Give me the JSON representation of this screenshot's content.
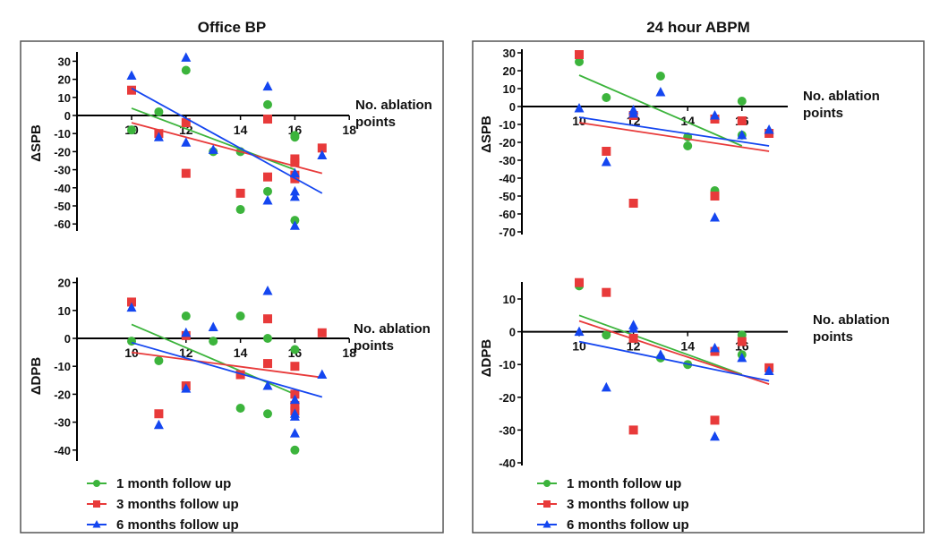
{
  "colors": {
    "1 month follow up": "#3cb43c",
    "3 months follow up": "#e83a3a",
    "6 months follow up": "#1446f0"
  },
  "legend": [
    "1 month follow up",
    "3 months follow up",
    "6 months follow up"
  ],
  "chart_data": [
    {
      "type": "scatter",
      "group_title": "Office BP",
      "ylabel": "ΔSPB",
      "xlabel": "No. ablation points",
      "xticks": [
        10,
        12,
        14,
        16,
        18
      ],
      "yticks": [
        30,
        20,
        10,
        0,
        -10,
        -20,
        -30,
        -40,
        -50,
        -60
      ],
      "ylim": [
        -63,
        35
      ],
      "xlim": [
        7,
        18
      ],
      "series": [
        {
          "name": "1 month follow up",
          "marker": "circle",
          "points": [
            [
              10,
              -8
            ],
            [
              11,
              2
            ],
            [
              12,
              25
            ],
            [
              13,
              -20
            ],
            [
              14,
              -20
            ],
            [
              14,
              -52
            ],
            [
              15,
              6
            ],
            [
              15,
              -42
            ],
            [
              16,
              -12
            ],
            [
              16,
              -11
            ],
            [
              16,
              -58
            ]
          ],
          "trend": [
            [
              10,
              4
            ],
            [
              16,
              -30
            ]
          ]
        },
        {
          "name": "3 months follow up",
          "marker": "square",
          "points": [
            [
              10,
              14
            ],
            [
              11,
              -10
            ],
            [
              12,
              -4
            ],
            [
              12,
              -32
            ],
            [
              14,
              -43
            ],
            [
              15,
              -2
            ],
            [
              15,
              -34
            ],
            [
              16,
              -24
            ],
            [
              16,
              -26
            ],
            [
              16,
              -33
            ],
            [
              16,
              -35
            ],
            [
              17,
              -18
            ]
          ],
          "trend": [
            [
              10,
              -4
            ],
            [
              17,
              -32
            ]
          ]
        },
        {
          "name": "6 months follow up",
          "marker": "triangle",
          "points": [
            [
              10,
              22
            ],
            [
              11,
              -12
            ],
            [
              12,
              32
            ],
            [
              12,
              -15
            ],
            [
              13,
              -19
            ],
            [
              15,
              16
            ],
            [
              15,
              -47
            ],
            [
              16,
              -32
            ],
            [
              16,
              -42
            ],
            [
              16,
              -45
            ],
            [
              16,
              -61
            ],
            [
              17,
              -22
            ]
          ],
          "trend": [
            [
              10,
              15
            ],
            [
              17,
              -43
            ]
          ]
        }
      ]
    },
    {
      "type": "scatter",
      "group_title": "24 hour ABPM",
      "ylabel": "ΔSPB",
      "xlabel": "No. ablation points",
      "xticks": [
        10,
        12,
        14,
        16
      ],
      "yticks": [
        30,
        20,
        10,
        0,
        -10,
        -20,
        -30,
        -40,
        -50,
        -60,
        -70
      ],
      "ylim": [
        -72,
        32
      ],
      "xlim": [
        8,
        18
      ],
      "series": [
        {
          "name": "1 month follow up",
          "marker": "circle",
          "points": [
            [
              10,
              25
            ],
            [
              11,
              5
            ],
            [
              13,
              17
            ],
            [
              14,
              -17
            ],
            [
              14,
              -22
            ],
            [
              15,
              -47
            ],
            [
              16,
              3
            ],
            [
              16,
              -16
            ]
          ],
          "trend": [
            [
              10,
              17.5
            ],
            [
              16,
              -22
            ]
          ]
        },
        {
          "name": "3 months follow up",
          "marker": "square",
          "points": [
            [
              10,
              29
            ],
            [
              11,
              -25
            ],
            [
              12,
              -5
            ],
            [
              12,
              -54
            ],
            [
              15,
              -7
            ],
            [
              15,
              -50
            ],
            [
              16,
              -8
            ],
            [
              17,
              -15
            ]
          ],
          "trend": [
            [
              10,
              -9
            ],
            [
              17,
              -25
            ]
          ]
        },
        {
          "name": "6 months follow up",
          "marker": "triangle",
          "points": [
            [
              10,
              -1
            ],
            [
              11,
              -31
            ],
            [
              12,
              -2
            ],
            [
              12,
              -4
            ],
            [
              13,
              8
            ],
            [
              15,
              -5
            ],
            [
              15,
              -62
            ],
            [
              16,
              -16
            ],
            [
              17,
              -13
            ]
          ],
          "trend": [
            [
              10,
              -6
            ],
            [
              17,
              -22
            ]
          ]
        }
      ]
    },
    {
      "type": "scatter",
      "group_title": "Office BP",
      "ylabel": "ΔDPB",
      "xlabel": "No. ablation points",
      "xticks": [
        10,
        12,
        14,
        16,
        18
      ],
      "yticks": [
        20,
        10,
        0,
        -10,
        -20,
        -30,
        -40
      ],
      "ylim": [
        -43,
        22
      ],
      "xlim": [
        7,
        18
      ],
      "series": [
        {
          "name": "1 month follow up",
          "marker": "circle",
          "points": [
            [
              10,
              -1
            ],
            [
              11,
              -8
            ],
            [
              12,
              8
            ],
            [
              13,
              -1
            ],
            [
              14,
              8
            ],
            [
              14,
              -25
            ],
            [
              15,
              0
            ],
            [
              15,
              -27
            ],
            [
              16,
              -4
            ],
            [
              16,
              -40
            ]
          ],
          "trend": [
            [
              10,
              5
            ],
            [
              16,
              -20
            ]
          ]
        },
        {
          "name": "3 months follow up",
          "marker": "square",
          "points": [
            [
              10,
              13
            ],
            [
              11,
              -27
            ],
            [
              12,
              1
            ],
            [
              12,
              -17
            ],
            [
              14,
              -13
            ],
            [
              15,
              7
            ],
            [
              15,
              -9
            ],
            [
              16,
              -10
            ],
            [
              16,
              -20
            ],
            [
              16,
              -24
            ],
            [
              16,
              -26
            ],
            [
              17,
              2
            ]
          ],
          "trend": [
            [
              10,
              -5
            ],
            [
              17,
              -14
            ]
          ]
        },
        {
          "name": "6 months follow up",
          "marker": "triangle",
          "points": [
            [
              10,
              11
            ],
            [
              11,
              -31
            ],
            [
              12,
              2
            ],
            [
              12,
              -18
            ],
            [
              13,
              4
            ],
            [
              15,
              17
            ],
            [
              15,
              -17
            ],
            [
              16,
              -22
            ],
            [
              16,
              -27
            ],
            [
              16,
              -28
            ],
            [
              16,
              -34
            ],
            [
              17,
              -13
            ]
          ],
          "trend": [
            [
              10,
              -1.5
            ],
            [
              17,
              -21
            ]
          ]
        }
      ]
    },
    {
      "type": "scatter",
      "group_title": "24 hour ABPM",
      "ylabel": "ΔDPB",
      "xlabel": "No. ablation points",
      "xticks": [
        10,
        12,
        14,
        16
      ],
      "yticks": [
        10,
        0,
        -10,
        -20,
        -30,
        -40
      ],
      "ylim": [
        -41,
        15
      ],
      "xlim": [
        8,
        18
      ],
      "series": [
        {
          "name": "1 month follow up",
          "marker": "circle",
          "points": [
            [
              10,
              14
            ],
            [
              11,
              -1
            ],
            [
              13,
              -8
            ],
            [
              14,
              -10
            ],
            [
              16,
              -1
            ],
            [
              16,
              -7
            ]
          ],
          "trend": [
            [
              10,
              5
            ],
            [
              16,
              -13
            ]
          ]
        },
        {
          "name": "3 months follow up",
          "marker": "square",
          "points": [
            [
              10,
              15
            ],
            [
              11,
              12
            ],
            [
              12,
              -2
            ],
            [
              12,
              -30
            ],
            [
              15,
              -6
            ],
            [
              15,
              -27
            ],
            [
              16,
              -3
            ],
            [
              17,
              -11
            ]
          ],
          "trend": [
            [
              10,
              3.3
            ],
            [
              17,
              -16
            ]
          ]
        },
        {
          "name": "6 months follow up",
          "marker": "triangle",
          "points": [
            [
              10,
              0
            ],
            [
              11,
              -17
            ],
            [
              12,
              2
            ],
            [
              12,
              1
            ],
            [
              13,
              -7
            ],
            [
              15,
              -5
            ],
            [
              15,
              -32
            ],
            [
              16,
              -8
            ],
            [
              17,
              -12
            ]
          ],
          "trend": [
            [
              10,
              -3
            ],
            [
              17,
              -15
            ]
          ]
        }
      ]
    }
  ]
}
